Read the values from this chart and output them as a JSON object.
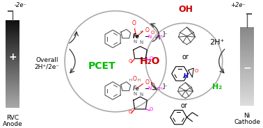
{
  "bg_color": "#ffffff",
  "anode_top_label": "-2e⁻",
  "cathode_top_label": "+2e⁻",
  "anode_plus": "+",
  "cathode_minus": "−",
  "overall_line1": "Overall",
  "overall_line2": "2H⁺/2e⁻",
  "pcet_label": "PCET",
  "h2o_label": "H₂O",
  "h2_label": "H₂",
  "hplus_label": "2H⁺",
  "oh_label": "OH",
  "or_label1": "or",
  "or_label2": "or",
  "pcet_color": "#00bb00",
  "h2o_color": "#cc0000",
  "h2_color": "#00bb00",
  "oh_color": "#cc0000",
  "h_color": "#0000dd",
  "arrow_color": "#333333"
}
